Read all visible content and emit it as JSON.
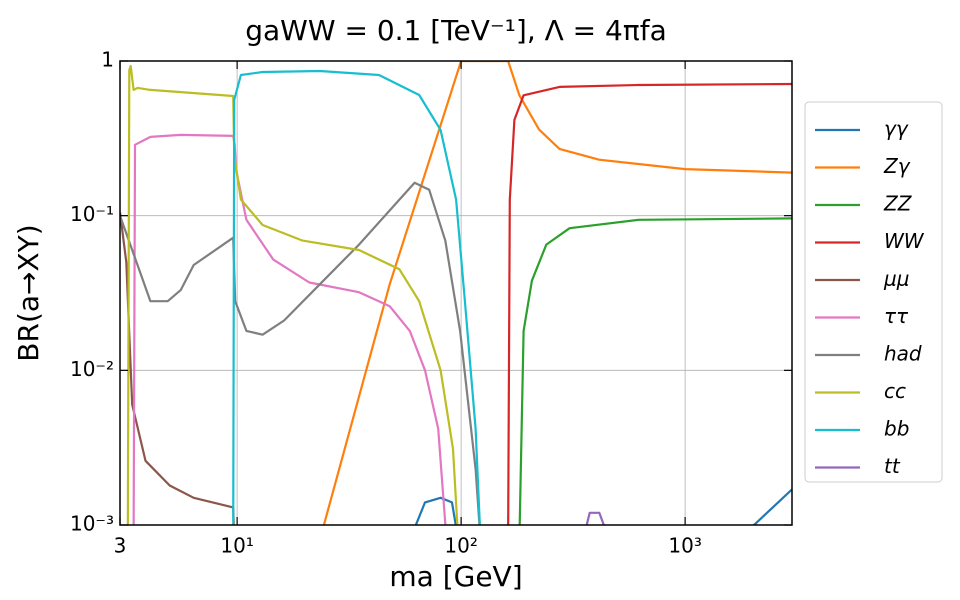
{
  "chart_data": {
    "type": "line",
    "title": "gaWW = 0.1 [TeV⁻¹], Λ = 4πfa",
    "x_label": "ma [GeV]",
    "y_label": "BR(a→XY)",
    "log_x": true,
    "log_y": true,
    "grid": true,
    "legend": "outside right",
    "xlim": [
      3,
      3000
    ],
    "xticks": [
      3,
      {
        "value": 10,
        "label": "10¹"
      },
      {
        "value": 100,
        "label": "10²"
      },
      {
        "value": 1000,
        "label": "10³"
      }
    ],
    "ylim": [
      0.001,
      1
    ],
    "yticks": [
      {
        "value": 0.001,
        "label": "10⁻³"
      },
      {
        "value": 0.01,
        "label": "10⁻²"
      },
      {
        "value": 0.1,
        "label": "10⁻¹"
      },
      1
    ],
    "series": [
      {
        "name": "γγ",
        "color": "#1f77b4",
        "x": [
          59,
          69,
          81,
          91,
          97,
          300,
          1722,
          3000
        ],
        "values": [
          0.0008,
          0.0014,
          0.0015,
          0.0014,
          0.0008,
          null,
          0.0008,
          0.0017
        ]
      },
      {
        "name": "Zγ",
        "color": "#ff7f0e",
        "x": [
          23.4,
          48,
          100,
          162,
          182,
          223,
          275,
          413,
          1000,
          3000
        ],
        "values": [
          0.0008,
          0.036,
          1,
          1,
          0.6,
          0.36,
          0.27,
          0.23,
          0.2,
          0.19
        ]
      },
      {
        "name": "ZZ",
        "color": "#2ca02c",
        "x": [
          182,
          190,
          207,
          240,
          305,
          620,
          3000
        ],
        "values": [
          0.0008,
          0.018,
          0.038,
          0.065,
          0.083,
          0.094,
          0.096
        ]
      },
      {
        "name": "WW",
        "color": "#d62728",
        "x": [
          162,
          165,
          173,
          190,
          275,
          620,
          3000
        ],
        "values": [
          0.0008,
          0.127,
          0.416,
          0.6,
          0.68,
          0.7,
          0.71
        ]
      },
      {
        "name": "μμ",
        "color": "#8c564b",
        "x": [
          3,
          3.2,
          3.4,
          3.9,
          5.0,
          6.4,
          9.6,
          9.7
        ],
        "values": [
          0.105,
          0.05,
          0.006,
          0.0026,
          0.0018,
          0.0015,
          0.0013,
          0.0008
        ]
      },
      {
        "name": "ττ",
        "color": "#e377c2",
        "x": [
          3.45,
          3.5,
          4.1,
          5.6,
          9.6,
          9.75,
          9.9,
          11,
          14.5,
          21,
          35,
          48,
          59,
          69,
          79,
          86
        ],
        "values": [
          0.0008,
          0.287,
          0.323,
          0.333,
          0.328,
          0.287,
          0.197,
          0.094,
          0.052,
          0.037,
          0.032,
          0.026,
          0.018,
          0.01,
          0.0042,
          0.0008
        ]
      },
      {
        "name": "had",
        "color": "#7f7f7f",
        "x": [
          3,
          4.1,
          4.9,
          5.6,
          6.4,
          9.6,
          9.8,
          11,
          13,
          16.2,
          23.4,
          35,
          53,
          62,
          72,
          85,
          99,
          116,
          122
        ],
        "values": [
          0.1,
          0.028,
          0.028,
          0.033,
          0.048,
          0.072,
          0.028,
          0.018,
          0.017,
          0.021,
          0.036,
          0.065,
          0.127,
          0.163,
          0.147,
          0.069,
          0.018,
          0.0023,
          0.0008
        ]
      },
      {
        "name": "cc",
        "color": "#bcbd22",
        "x": [
          3.25,
          3.3,
          3.35,
          3.45,
          3.6,
          4.1,
          9.6,
          9.7,
          10.4,
          13,
          19.6,
          35,
          53,
          65,
          81,
          92,
          97
        ],
        "values": [
          0.0008,
          0.875,
          0.928,
          0.65,
          0.67,
          0.65,
          0.594,
          0.247,
          0.127,
          0.087,
          0.069,
          0.06,
          0.045,
          0.028,
          0.01,
          0.0031,
          0.0008
        ]
      },
      {
        "name": "bb",
        "color": "#17becf",
        "x": [
          9.6,
          9.7,
          10.4,
          13,
          23.4,
          43,
          65,
          81,
          95,
          104,
          116,
          122
        ],
        "values": [
          0.0008,
          0.56,
          0.812,
          0.849,
          0.862,
          0.812,
          0.603,
          0.358,
          0.127,
          0.028,
          0.0042,
          0.0008
        ]
      },
      {
        "name": "tt",
        "color": "#9467bd",
        "x": [
          350,
          375,
          414,
          459
        ],
        "values": [
          0.0008,
          0.0012,
          0.0012,
          0.0008
        ]
      }
    ]
  }
}
